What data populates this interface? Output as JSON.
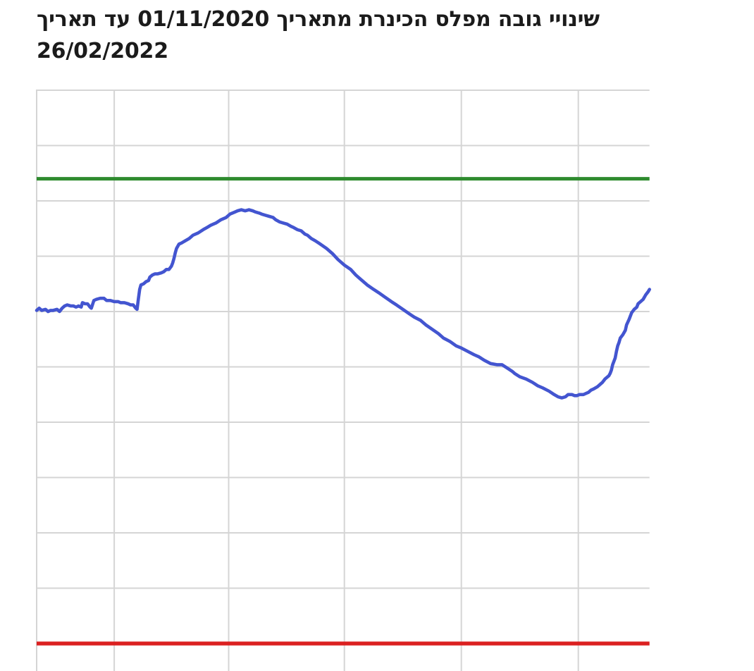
{
  "title": {
    "full": "שינויי גובה מפלס הכינרת מתאריך 01/11/2020 עד תאריך 26/02/2022",
    "line1": "שינויי גובה מפלס הכינרת מתאריך 01/11/2020 עד תאריך",
    "line2": "26/02/2022",
    "start_date": "01/11/2020",
    "end_date": "26/02/2022"
  },
  "colors": {
    "series_blue": "#4355d0",
    "green_reference": "#2e8b2e",
    "red_reference": "#db2121",
    "grid": "#d5d5d5",
    "title_text": "#1b1b1b",
    "background": "#ffffff"
  },
  "chart_data": {
    "type": "line",
    "title": "שינויי גובה מפלס הכינרת מתאריך 01/11/2020 עד תאריך 26/02/2022",
    "x_axis": {
      "start_date": "01/11/2020",
      "end_date": "26/02/2022",
      "total_days": 482,
      "gridline_days_from_start": [
        61,
        151,
        242,
        334,
        426
      ],
      "tick_labels_visible": false
    },
    "y_axis": {
      "unit": "m",
      "gridline_step": 0.5,
      "gridlines": [
        -208.0,
        -208.5,
        -209.0,
        -209.5,
        -210.0,
        -210.5,
        -211.0,
        -211.5,
        -212.0,
        -212.5,
        -213.0
      ],
      "tick_labels_visible": false
    },
    "reference_lines": [
      {
        "id": "green-reference-line",
        "value": -208.8,
        "color": "#2e8b2e"
      },
      {
        "id": "red-reference-line",
        "value": -213.0,
        "color": "#db2121"
      }
    ],
    "grid": true,
    "legend": "none",
    "series": [
      {
        "name": "level",
        "color": "#4355d0",
        "points": [
          [
            0,
            -209.99
          ],
          [
            2,
            -209.97
          ],
          [
            4,
            -209.99
          ],
          [
            7,
            -209.98
          ],
          [
            9,
            -210.0
          ],
          [
            11,
            -209.99
          ],
          [
            13,
            -209.99
          ],
          [
            16,
            -209.98
          ],
          [
            18,
            -210.0
          ],
          [
            20,
            -209.97
          ],
          [
            22,
            -209.95
          ],
          [
            24,
            -209.94
          ],
          [
            27,
            -209.95
          ],
          [
            29,
            -209.95
          ],
          [
            31,
            -209.96
          ],
          [
            33,
            -209.95
          ],
          [
            35,
            -209.96
          ],
          [
            36,
            -209.92
          ],
          [
            38,
            -209.93
          ],
          [
            40,
            -209.93
          ],
          [
            42,
            -209.96
          ],
          [
            43,
            -209.97
          ],
          [
            45,
            -209.9
          ],
          [
            47,
            -209.89
          ],
          [
            50,
            -209.88
          ],
          [
            53,
            -209.88
          ],
          [
            55,
            -209.9
          ],
          [
            58,
            -209.9
          ],
          [
            61,
            -209.91
          ],
          [
            64,
            -209.91
          ],
          [
            66,
            -209.92
          ],
          [
            69,
            -209.92
          ],
          [
            72,
            -209.93
          ],
          [
            74,
            -209.94
          ],
          [
            76,
            -209.94
          ],
          [
            78,
            -209.97
          ],
          [
            79,
            -209.98
          ],
          [
            80,
            -209.89
          ],
          [
            81,
            -209.8
          ],
          [
            82,
            -209.76
          ],
          [
            84,
            -209.75
          ],
          [
            86,
            -209.73
          ],
          [
            88,
            -209.72
          ],
          [
            89,
            -209.69
          ],
          [
            91,
            -209.67
          ],
          [
            93,
            -209.66
          ],
          [
            95,
            -209.66
          ],
          [
            98,
            -209.65
          ],
          [
            100,
            -209.64
          ],
          [
            102,
            -209.62
          ],
          [
            104,
            -209.62
          ],
          [
            106,
            -209.59
          ],
          [
            107,
            -209.56
          ],
          [
            108,
            -209.52
          ],
          [
            109,
            -209.47
          ],
          [
            110,
            -209.43
          ],
          [
            112,
            -209.39
          ],
          [
            114,
            -209.38
          ],
          [
            117,
            -209.36
          ],
          [
            120,
            -209.34
          ],
          [
            123,
            -209.31
          ],
          [
            127,
            -209.29
          ],
          [
            131,
            -209.26
          ],
          [
            134,
            -209.24
          ],
          [
            137,
            -209.22
          ],
          [
            141,
            -209.2
          ],
          [
            145,
            -209.17
          ],
          [
            149,
            -209.15
          ],
          [
            152,
            -209.12
          ],
          [
            156,
            -209.1
          ],
          [
            158,
            -209.09
          ],
          [
            161,
            -209.08
          ],
          [
            164,
            -209.09
          ],
          [
            167,
            -209.08
          ],
          [
            170,
            -209.09
          ],
          [
            172,
            -209.1
          ],
          [
            175,
            -209.11
          ],
          [
            177,
            -209.12
          ],
          [
            180,
            -209.13
          ],
          [
            183,
            -209.14
          ],
          [
            186,
            -209.15
          ],
          [
            188,
            -209.17
          ],
          [
            191,
            -209.19
          ],
          [
            194,
            -209.2
          ],
          [
            197,
            -209.21
          ],
          [
            200,
            -209.23
          ],
          [
            202,
            -209.24
          ],
          [
            205,
            -209.26
          ],
          [
            208,
            -209.27
          ],
          [
            211,
            -209.3
          ],
          [
            213,
            -209.31
          ],
          [
            216,
            -209.34
          ],
          [
            219,
            -209.36
          ],
          [
            223,
            -209.39
          ],
          [
            228,
            -209.43
          ],
          [
            233,
            -209.48
          ],
          [
            237,
            -209.53
          ],
          [
            242,
            -209.58
          ],
          [
            247,
            -209.62
          ],
          [
            251,
            -209.67
          ],
          [
            255,
            -209.71
          ],
          [
            260,
            -209.76
          ],
          [
            265,
            -209.8
          ],
          [
            269,
            -209.83
          ],
          [
            274,
            -209.87
          ],
          [
            279,
            -209.91
          ],
          [
            283,
            -209.94
          ],
          [
            288,
            -209.98
          ],
          [
            293,
            -210.02
          ],
          [
            297,
            -210.05
          ],
          [
            302,
            -210.08
          ],
          [
            306,
            -210.12
          ],
          [
            311,
            -210.16
          ],
          [
            316,
            -210.2
          ],
          [
            320,
            -210.24
          ],
          [
            325,
            -210.27
          ],
          [
            330,
            -210.31
          ],
          [
            334,
            -210.33
          ],
          [
            339,
            -210.36
          ],
          [
            344,
            -210.39
          ],
          [
            348,
            -210.41
          ],
          [
            352,
            -210.44
          ],
          [
            357,
            -210.47
          ],
          [
            362,
            -210.48
          ],
          [
            366,
            -210.48
          ],
          [
            370,
            -210.51
          ],
          [
            374,
            -210.54
          ],
          [
            376,
            -210.56
          ],
          [
            380,
            -210.59
          ],
          [
            385,
            -210.61
          ],
          [
            390,
            -210.64
          ],
          [
            394,
            -210.67
          ],
          [
            398,
            -210.69
          ],
          [
            403,
            -210.72
          ],
          [
            407,
            -210.75
          ],
          [
            410,
            -210.77
          ],
          [
            413,
            -210.78
          ],
          [
            416,
            -210.77
          ],
          [
            418,
            -210.75
          ],
          [
            421,
            -210.75
          ],
          [
            423,
            -210.76
          ],
          [
            425,
            -210.76
          ],
          [
            427,
            -210.75
          ],
          [
            430,
            -210.75
          ],
          [
            432,
            -210.74
          ],
          [
            434,
            -210.73
          ],
          [
            436,
            -210.71
          ],
          [
            438,
            -210.7
          ],
          [
            441,
            -210.68
          ],
          [
            443,
            -210.66
          ],
          [
            445,
            -210.64
          ],
          [
            447,
            -210.61
          ],
          [
            450,
            -210.58
          ],
          [
            451,
            -210.56
          ],
          [
            452,
            -210.53
          ],
          [
            453,
            -210.48
          ],
          [
            455,
            -210.42
          ],
          [
            456,
            -210.36
          ],
          [
            457,
            -210.31
          ],
          [
            458,
            -210.28
          ],
          [
            459,
            -210.24
          ],
          [
            461,
            -210.21
          ],
          [
            463,
            -210.17
          ],
          [
            464,
            -210.12
          ],
          [
            466,
            -210.07
          ],
          [
            468,
            -210.01
          ],
          [
            470,
            -209.98
          ],
          [
            472,
            -209.96
          ],
          [
            473,
            -209.93
          ],
          [
            476,
            -209.9
          ],
          [
            477,
            -209.89
          ],
          [
            479,
            -209.85
          ],
          [
            481,
            -209.82
          ],
          [
            482,
            -209.8
          ]
        ]
      }
    ]
  }
}
